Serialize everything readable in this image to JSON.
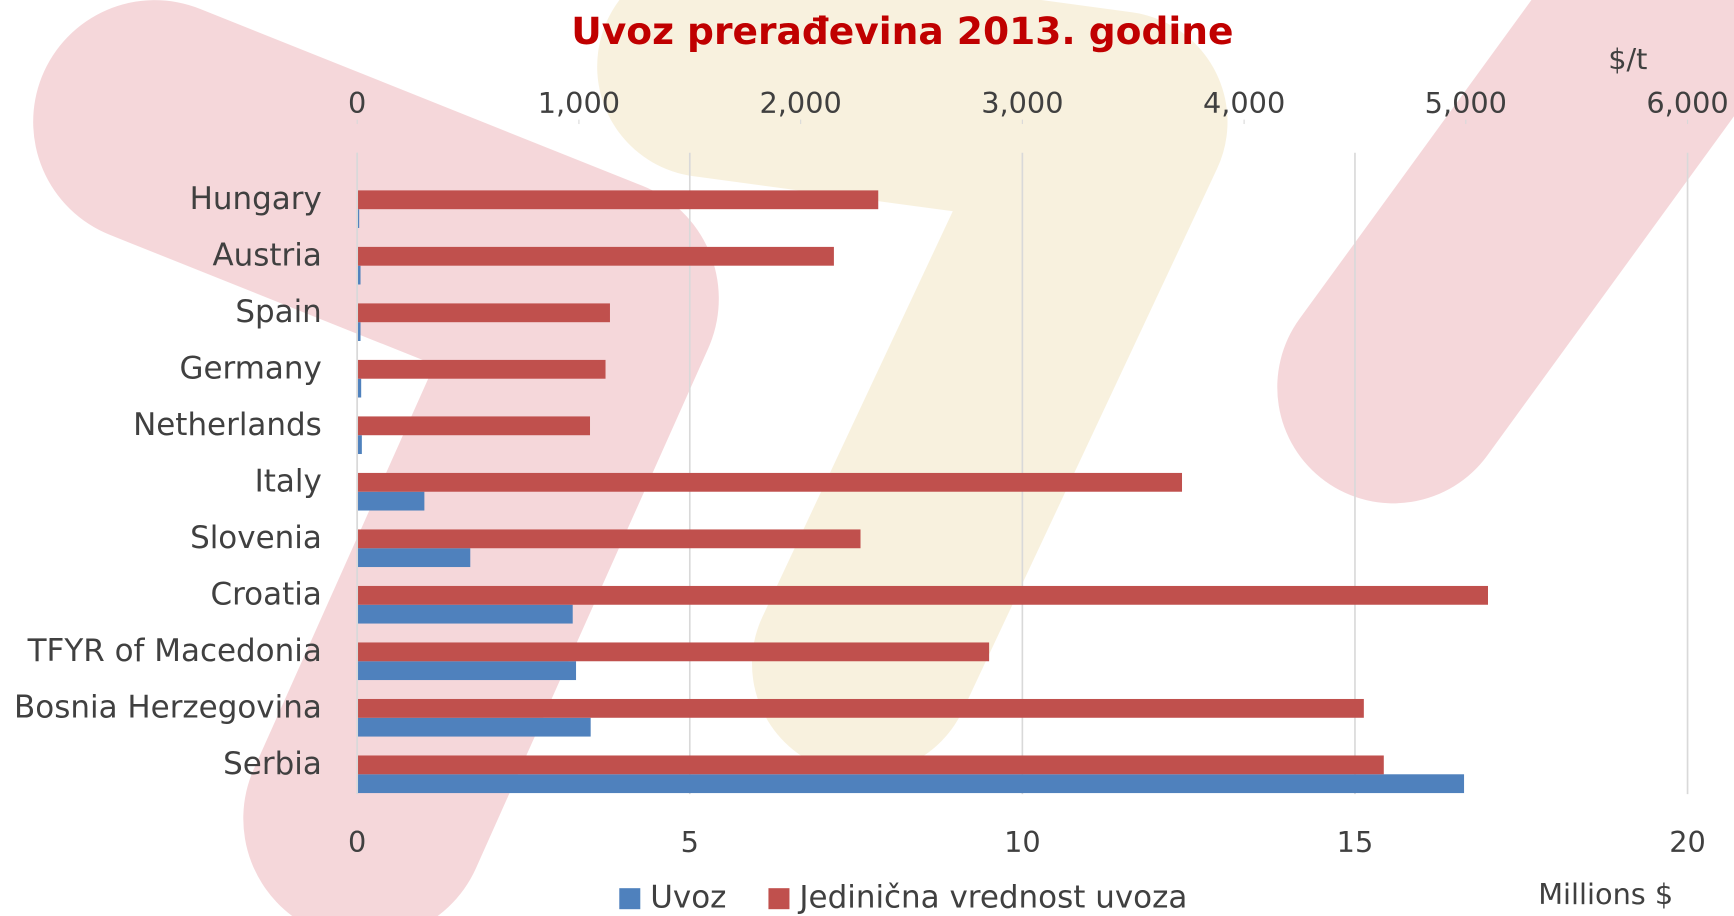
{
  "chart_data": {
    "type": "hbar",
    "title": "Uvoz prerađevina 2013. godine",
    "xlabel": "Millions $",
    "x2label": "$/t",
    "categories": [
      "Hungary",
      "Austria",
      "Spain",
      "Germany",
      "Netherlands",
      "Italy",
      "Slovenia",
      "Croatia",
      "TFYR of Macedonia",
      "Bosnia Herzegovina",
      "Serbia"
    ],
    "series": [
      {
        "name": "Uvoz",
        "color": "#4f81bd",
        "axis": "x",
        "values": [
          0.03,
          0.05,
          0.05,
          0.06,
          0.07,
          1.01,
          1.7,
          3.24,
          3.29,
          3.51,
          16.64
        ]
      },
      {
        "name": "Jedinična vrednost uvoza",
        "color": "#c0504d",
        "axis": "x2",
        "values": [
          2350,
          2150,
          1140,
          1120,
          1050,
          3720,
          2270,
          5100,
          2850,
          4540,
          4630
        ]
      }
    ],
    "xlim": [
      0,
      20
    ],
    "xticks": [
      0,
      5,
      10,
      15,
      20
    ],
    "x2lim": [
      0,
      6000
    ],
    "x2ticks": [
      0,
      {
        "value": 1000,
        "label": "1,000"
      },
      {
        "value": 2000,
        "label": "2,000"
      },
      {
        "value": 3000,
        "label": "3,000"
      },
      {
        "value": 4000,
        "label": "4,000"
      },
      {
        "value": 5000,
        "label": "5,000"
      },
      {
        "value": 6000,
        "label": "6,000"
      }
    ],
    "grid": true
  }
}
